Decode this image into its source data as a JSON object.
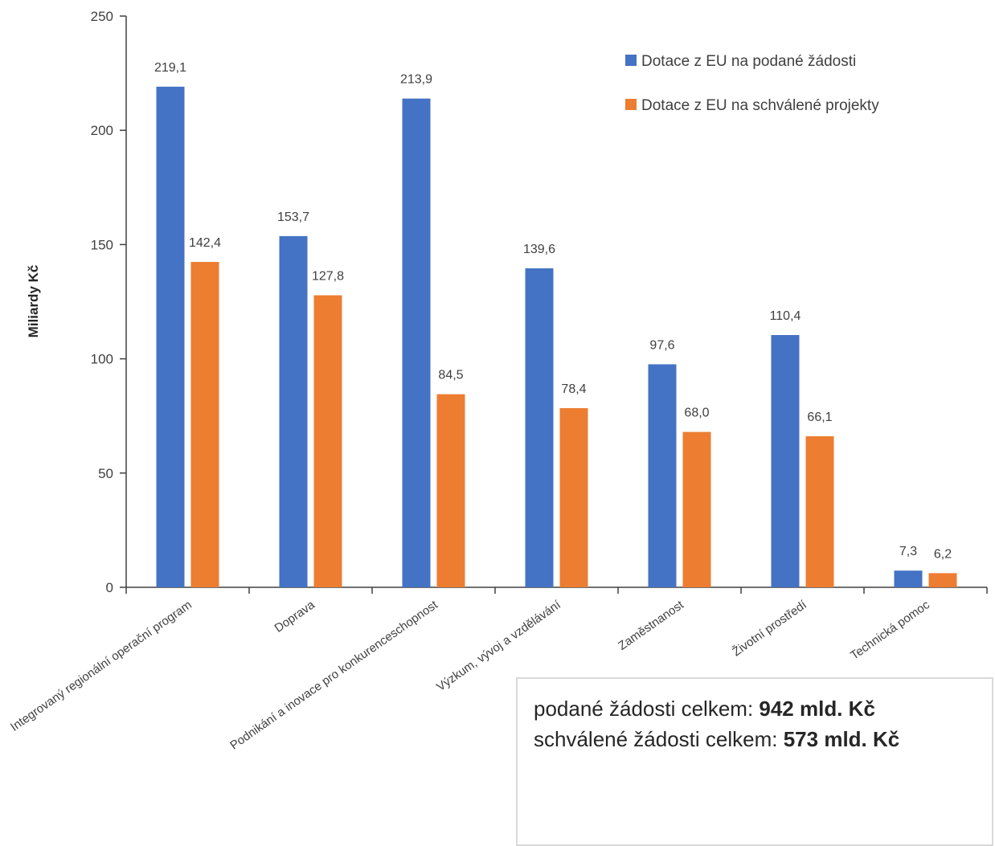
{
  "chart_data": {
    "type": "bar",
    "ylabel": "Miliardy Kč",
    "xlabel": "",
    "ylim": [
      0,
      250
    ],
    "yticks": [
      0,
      50,
      100,
      150,
      200,
      250
    ],
    "grid": false,
    "legend_position": "top-right",
    "categories": [
      "Integrovaný regionální operační program",
      "Doprava",
      "Podnikání a inovace pro konkurenceschopnost",
      "Výzkum, vývoj a vzdělávání",
      "Zaměstnanost",
      "Životní prostředí",
      "Technická pomoc"
    ],
    "series": [
      {
        "name": "Dotace z EU na podané žádosti",
        "color": "#4472C4",
        "values": [
          219.1,
          153.7,
          213.9,
          139.6,
          97.6,
          110.4,
          7.3
        ],
        "labels": [
          "219,1",
          "153,7",
          "213,9",
          "139,6",
          "97,6",
          "110,4",
          "7,3"
        ]
      },
      {
        "name": "Dotace z EU na schválené projekty",
        "color": "#ED7D31",
        "values": [
          142.4,
          127.8,
          84.5,
          78.4,
          68.0,
          66.1,
          6.2
        ],
        "labels": [
          "142,4",
          "127,8",
          "84,5",
          "78,4",
          "68,0",
          "66,1",
          "6,2"
        ]
      }
    ]
  },
  "summary": {
    "line1_prefix": "podané žádosti celkem: ",
    "line1_value": "942 mld. Kč",
    "line2_prefix": "schválené žádosti celkem: ",
    "line2_value": "573 mld. Kč"
  }
}
